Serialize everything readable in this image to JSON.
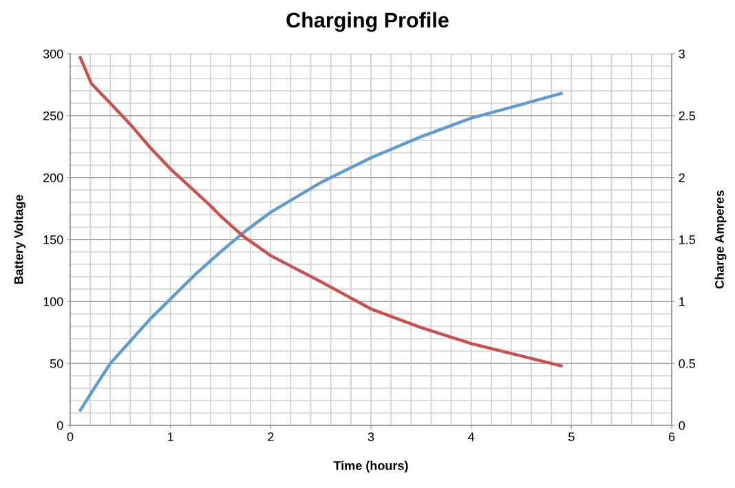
{
  "chart_data": {
    "type": "line",
    "title": "Charging Profile",
    "xlabel": "Time (hours)",
    "ylabel": "Battery Voltage",
    "y2label": "Charge Amperes",
    "series": [
      {
        "color": "#5e9bd0",
        "x": [
          0.1,
          0.2,
          0.4,
          0.6,
          0.8,
          1.0,
          1.25,
          1.5,
          1.75,
          2.0,
          2.5,
          3.0,
          3.5,
          4.0,
          4.5,
          4.9
        ],
        "values": [
          12,
          25,
          50,
          68,
          86,
          102,
          122,
          140,
          157,
          172,
          196,
          216,
          233,
          248,
          259,
          268
        ]
      },
      {
        "color": "#c9504d",
        "axis": "y2",
        "x": [
          0.1,
          0.21,
          0.4,
          0.61,
          0.8,
          1.0,
          1.39,
          1.5,
          1.72,
          2.0,
          2.5,
          3.0,
          3.5,
          4.0,
          4.5,
          4.9
        ],
        "values": [
          2.97,
          2.76,
          2.6,
          2.42,
          2.24,
          2.07,
          1.78,
          1.69,
          1.53,
          1.37,
          1.16,
          0.94,
          0.79,
          0.66,
          0.56,
          0.48
        ]
      }
    ],
    "xlim": [
      0,
      6
    ],
    "xticks": [
      0,
      1,
      2,
      3,
      4,
      5,
      6
    ],
    "ylim": [
      0,
      300
    ],
    "yticks": [
      0,
      50,
      100,
      150,
      200,
      250,
      300
    ],
    "y2lim": [
      0,
      3
    ],
    "y2ticks": [
      0,
      0.5,
      1,
      1.5,
      2,
      2.5,
      3
    ],
    "grid": true,
    "line_style": "solid",
    "marker": "none"
  }
}
